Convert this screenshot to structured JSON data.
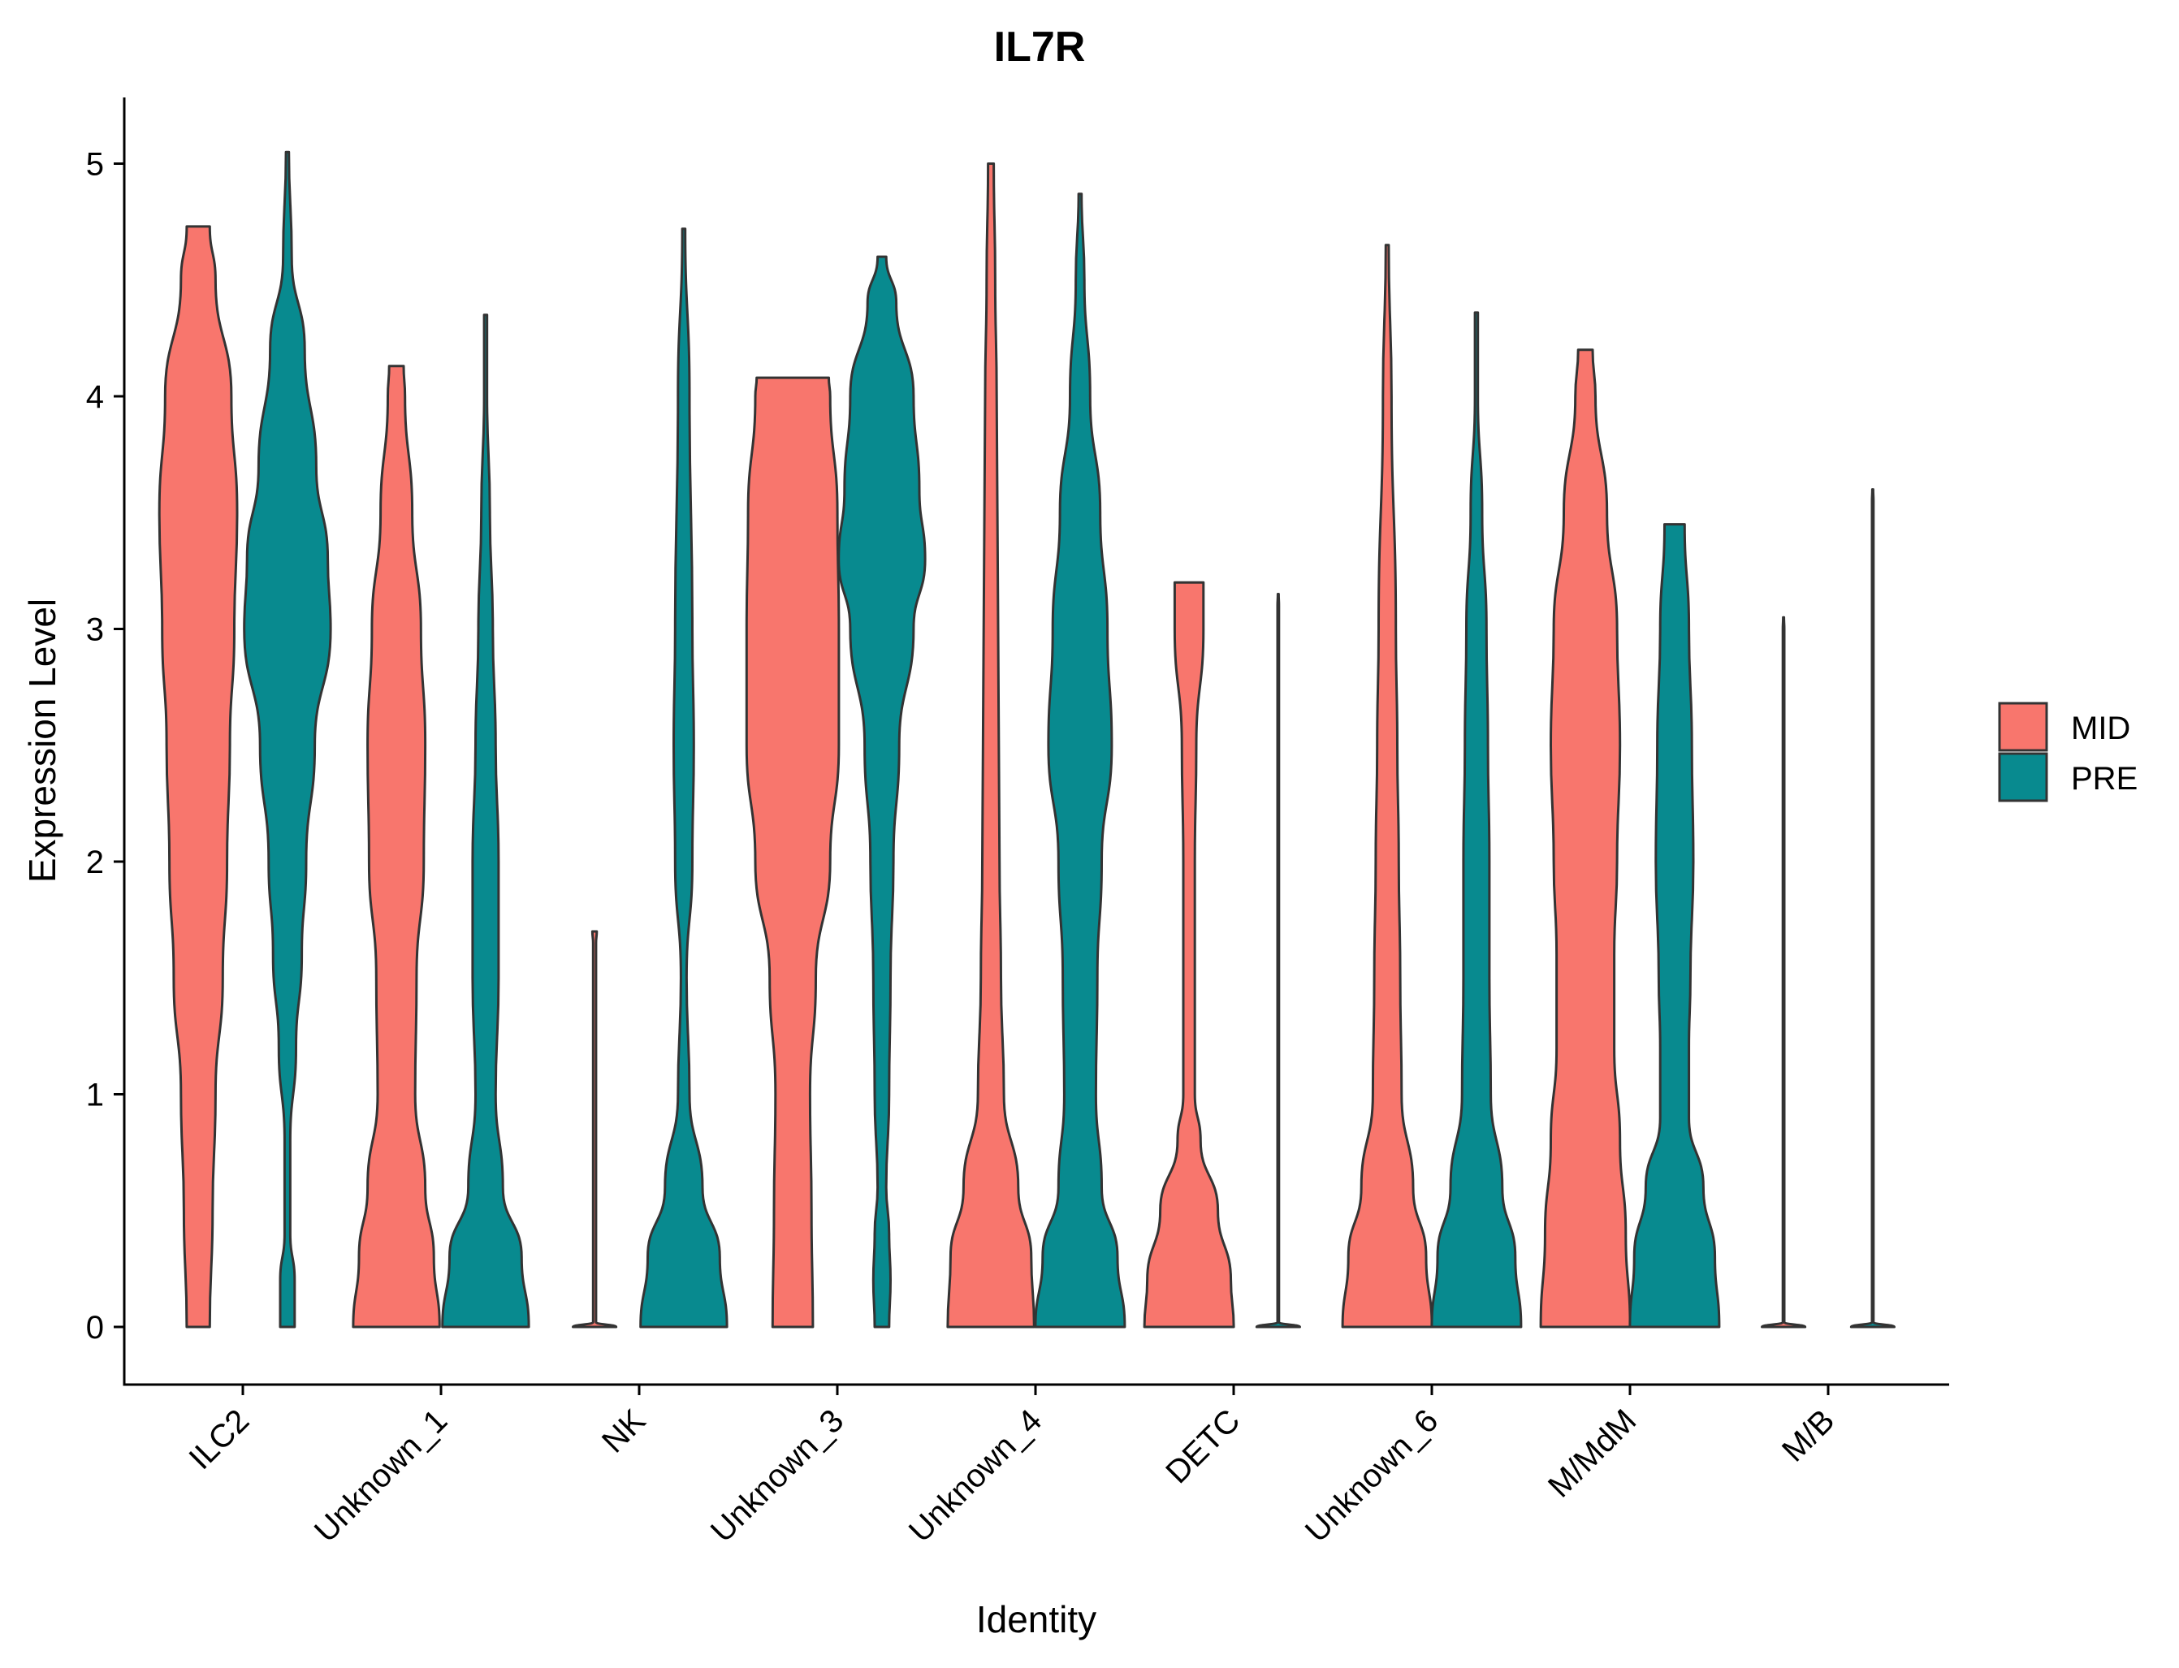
{
  "chart_data": {
    "type": "violin",
    "title": "IL7R",
    "xlabel": "Identity",
    "ylabel": "Expression Level",
    "ylim": [
      -0.25,
      5.3
    ],
    "yticks": [
      0,
      1,
      2,
      3,
      4,
      5
    ],
    "grid": false,
    "legend_position": "right",
    "categories": [
      "ILC2",
      "Unknown_1",
      "NK",
      "Unknown_3",
      "Unknown_4",
      "DETC",
      "Unknown_6",
      "M/MdM",
      "M/B"
    ],
    "series": [
      {
        "name": "MID",
        "color": "#F8766D",
        "violins": [
          {
            "category": "ILC2",
            "max": 4.73,
            "profile": [
              [
                0,
                0.08
              ],
              [
                0.5,
                0.1
              ],
              [
                1.0,
                0.12
              ],
              [
                1.5,
                0.17
              ],
              [
                2.0,
                0.2
              ],
              [
                2.5,
                0.22
              ],
              [
                3.0,
                0.25
              ],
              [
                3.5,
                0.27
              ],
              [
                4.0,
                0.23
              ],
              [
                4.5,
                0.12
              ],
              [
                4.73,
                0.08
              ]
            ]
          },
          {
            "category": "Unknown_1",
            "max": 4.13,
            "profile": [
              [
                0,
                0.3
              ],
              [
                0.3,
                0.26
              ],
              [
                0.6,
                0.2
              ],
              [
                1.0,
                0.13
              ],
              [
                1.5,
                0.14
              ],
              [
                2.0,
                0.19
              ],
              [
                2.5,
                0.2
              ],
              [
                3.0,
                0.17
              ],
              [
                3.5,
                0.11
              ],
              [
                4.0,
                0.06
              ],
              [
                4.13,
                0.05
              ]
            ]
          },
          {
            "category": "NK",
            "max": 1.7,
            "profile": [
              [
                0,
                0.15
              ],
              [
                0.02,
                0.01
              ],
              [
                1.65,
                0.01
              ],
              [
                1.7,
                0.015
              ]
            ]
          },
          {
            "category": "Unknown_3",
            "max": 4.08,
            "profile": [
              [
                0,
                0.14
              ],
              [
                0.5,
                0.13
              ],
              [
                1.0,
                0.12
              ],
              [
                1.5,
                0.16
              ],
              [
                2.0,
                0.26
              ],
              [
                2.5,
                0.32
              ],
              [
                3.0,
                0.32
              ],
              [
                3.5,
                0.31
              ],
              [
                4.0,
                0.26
              ],
              [
                4.08,
                0.25
              ]
            ]
          },
          {
            "category": "Unknown_4",
            "max": 5.0,
            "profile": [
              [
                0,
                0.3
              ],
              [
                0.3,
                0.28
              ],
              [
                0.6,
                0.19
              ],
              [
                1.0,
                0.09
              ],
              [
                1.5,
                0.07
              ],
              [
                2.0,
                0.06
              ],
              [
                3.0,
                0.05
              ],
              [
                4.0,
                0.04
              ],
              [
                4.5,
                0.03
              ],
              [
                5.0,
                0.02
              ]
            ]
          },
          {
            "category": "DETC",
            "max": 3.2,
            "profile": [
              [
                0,
                0.31
              ],
              [
                0.2,
                0.29
              ],
              [
                0.5,
                0.2
              ],
              [
                0.8,
                0.08
              ],
              [
                1.0,
                0.04
              ],
              [
                1.5,
                0.04
              ],
              [
                2.0,
                0.04
              ],
              [
                2.5,
                0.05
              ],
              [
                3.0,
                0.1
              ],
              [
                3.2,
                0.1
              ]
            ]
          },
          {
            "category": "Unknown_6",
            "max": 4.65,
            "profile": [
              [
                0,
                0.31
              ],
              [
                0.3,
                0.27
              ],
              [
                0.6,
                0.18
              ],
              [
                1.0,
                0.1
              ],
              [
                1.5,
                0.09
              ],
              [
                2.0,
                0.08
              ],
              [
                2.5,
                0.07
              ],
              [
                3.0,
                0.06
              ],
              [
                4.0,
                0.03
              ],
              [
                4.65,
                0.01
              ]
            ]
          },
          {
            "category": "M/MdM",
            "max": 4.2,
            "profile": [
              [
                0,
                0.31
              ],
              [
                0.4,
                0.28
              ],
              [
                0.8,
                0.24
              ],
              [
                1.2,
                0.2
              ],
              [
                1.6,
                0.2
              ],
              [
                2.0,
                0.22
              ],
              [
                2.5,
                0.24
              ],
              [
                3.0,
                0.22
              ],
              [
                3.5,
                0.15
              ],
              [
                4.0,
                0.07
              ],
              [
                4.2,
                0.05
              ]
            ]
          },
          {
            "category": "M/B",
            "max": 3.05,
            "profile": [
              [
                0,
                0.15
              ],
              [
                0.02,
                0.005
              ],
              [
                3.0,
                0.005
              ],
              [
                3.05,
                0.003
              ]
            ]
          }
        ]
      },
      {
        "name": "PRE",
        "color": "#088A8F",
        "violins": [
          {
            "category": "ILC2",
            "max": 5.05,
            "profile": [
              [
                0,
                0.05
              ],
              [
                0.2,
                0.05
              ],
              [
                0.4,
                0.02
              ],
              [
                0.8,
                0.02
              ],
              [
                1.2,
                0.06
              ],
              [
                1.6,
                0.1
              ],
              [
                2.0,
                0.13
              ],
              [
                2.5,
                0.19
              ],
              [
                3.0,
                0.3
              ],
              [
                3.3,
                0.28
              ],
              [
                3.7,
                0.2
              ],
              [
                4.2,
                0.12
              ],
              [
                4.6,
                0.03
              ],
              [
                5.05,
                0.01
              ]
            ]
          },
          {
            "category": "Unknown_1",
            "max": 4.35,
            "profile": [
              [
                0,
                0.3
              ],
              [
                0.3,
                0.25
              ],
              [
                0.6,
                0.12
              ],
              [
                1.0,
                0.07
              ],
              [
                1.5,
                0.09
              ],
              [
                2.0,
                0.09
              ],
              [
                2.5,
                0.07
              ],
              [
                3.0,
                0.05
              ],
              [
                3.5,
                0.03
              ],
              [
                4.0,
                0.01
              ],
              [
                4.35,
                0.01
              ]
            ]
          },
          {
            "category": "NK",
            "max": 4.72,
            "profile": [
              [
                0,
                0.3
              ],
              [
                0.3,
                0.25
              ],
              [
                0.6,
                0.13
              ],
              [
                1.0,
                0.04
              ],
              [
                1.5,
                0.02
              ],
              [
                2.0,
                0.06
              ],
              [
                2.5,
                0.07
              ],
              [
                3.0,
                0.06
              ],
              [
                4.0,
                0.04
              ],
              [
                4.72,
                0.01
              ]
            ]
          },
          {
            "category": "Unknown_3",
            "max": 4.6,
            "profile": [
              [
                0,
                0.05
              ],
              [
                0.2,
                0.06
              ],
              [
                0.4,
                0.05
              ],
              [
                0.6,
                0.03
              ],
              [
                1.0,
                0.05
              ],
              [
                1.5,
                0.06
              ],
              [
                2.0,
                0.08
              ],
              [
                2.5,
                0.12
              ],
              [
                3.0,
                0.22
              ],
              [
                3.3,
                0.3
              ],
              [
                3.6,
                0.26
              ],
              [
                4.0,
                0.22
              ],
              [
                4.4,
                0.1
              ],
              [
                4.6,
                0.03
              ]
            ]
          },
          {
            "category": "Unknown_4",
            "max": 4.87,
            "profile": [
              [
                0,
                0.31
              ],
              [
                0.3,
                0.26
              ],
              [
                0.6,
                0.15
              ],
              [
                1.0,
                0.11
              ],
              [
                1.5,
                0.12
              ],
              [
                2.0,
                0.15
              ],
              [
                2.5,
                0.22
              ],
              [
                3.0,
                0.19
              ],
              [
                3.5,
                0.14
              ],
              [
                4.0,
                0.07
              ],
              [
                4.5,
                0.03
              ],
              [
                4.87,
                0.01
              ]
            ]
          },
          {
            "category": "DETC",
            "max": 3.15,
            "profile": [
              [
                0,
                0.15
              ],
              [
                0.02,
                0.005
              ],
              [
                3.1,
                0.005
              ],
              [
                3.15,
                0.003
              ]
            ]
          },
          {
            "category": "Unknown_6",
            "max": 4.36,
            "profile": [
              [
                0,
                0.31
              ],
              [
                0.3,
                0.27
              ],
              [
                0.6,
                0.18
              ],
              [
                1.0,
                0.1
              ],
              [
                1.5,
                0.09
              ],
              [
                2.0,
                0.09
              ],
              [
                2.5,
                0.08
              ],
              [
                3.0,
                0.07
              ],
              [
                3.5,
                0.04
              ],
              [
                4.0,
                0.01
              ],
              [
                4.36,
                0.01
              ]
            ]
          },
          {
            "category": "M/MdM",
            "max": 3.45,
            "profile": [
              [
                0,
                0.31
              ],
              [
                0.3,
                0.28
              ],
              [
                0.6,
                0.2
              ],
              [
                0.9,
                0.1
              ],
              [
                1.2,
                0.1
              ],
              [
                1.5,
                0.11
              ],
              [
                2.0,
                0.13
              ],
              [
                2.5,
                0.12
              ],
              [
                3.0,
                0.1
              ],
              [
                3.45,
                0.07
              ]
            ]
          },
          {
            "category": "M/B",
            "max": 3.6,
            "profile": [
              [
                0,
                0.15
              ],
              [
                0.02,
                0.005
              ],
              [
                3.55,
                0.005
              ],
              [
                3.6,
                0.003
              ]
            ]
          }
        ]
      }
    ]
  }
}
